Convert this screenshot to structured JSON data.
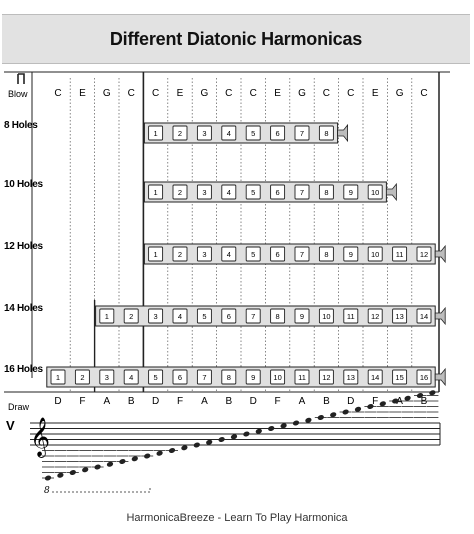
{
  "title": "Different Diatonic Harmonicas",
  "footer": "HarmonicaBreeze - Learn To Play Harmonica",
  "blow_label": "Blow",
  "draw_label": "Draw",
  "blow_notes": [
    "C",
    "E",
    "G",
    "C",
    "C",
    "E",
    "G",
    "C",
    "C",
    "E",
    "G",
    "C",
    "C",
    "E",
    "G",
    "C"
  ],
  "draw_notes": [
    "D",
    "F",
    "A",
    "B",
    "D",
    "F",
    "A",
    "B",
    "D",
    "F",
    "A",
    "B",
    "D",
    "F",
    "A",
    "B"
  ],
  "harmonicas": [
    {
      "label": "8 Holes",
      "holes": 8,
      "start_col": 4
    },
    {
      "label": "10 Holes",
      "holes": 10,
      "start_col": 4
    },
    {
      "label": "12 Holes",
      "holes": 12,
      "start_col": 4
    },
    {
      "label": "14 Holes",
      "holes": 14,
      "start_col": 2
    },
    {
      "label": "16 Holes",
      "holes": 16,
      "start_col": 0
    }
  ],
  "octave_mark": "8",
  "colors": {
    "harp_body": "#e0e0e0",
    "hole_fill": "#ffffff",
    "line": "#222222"
  }
}
